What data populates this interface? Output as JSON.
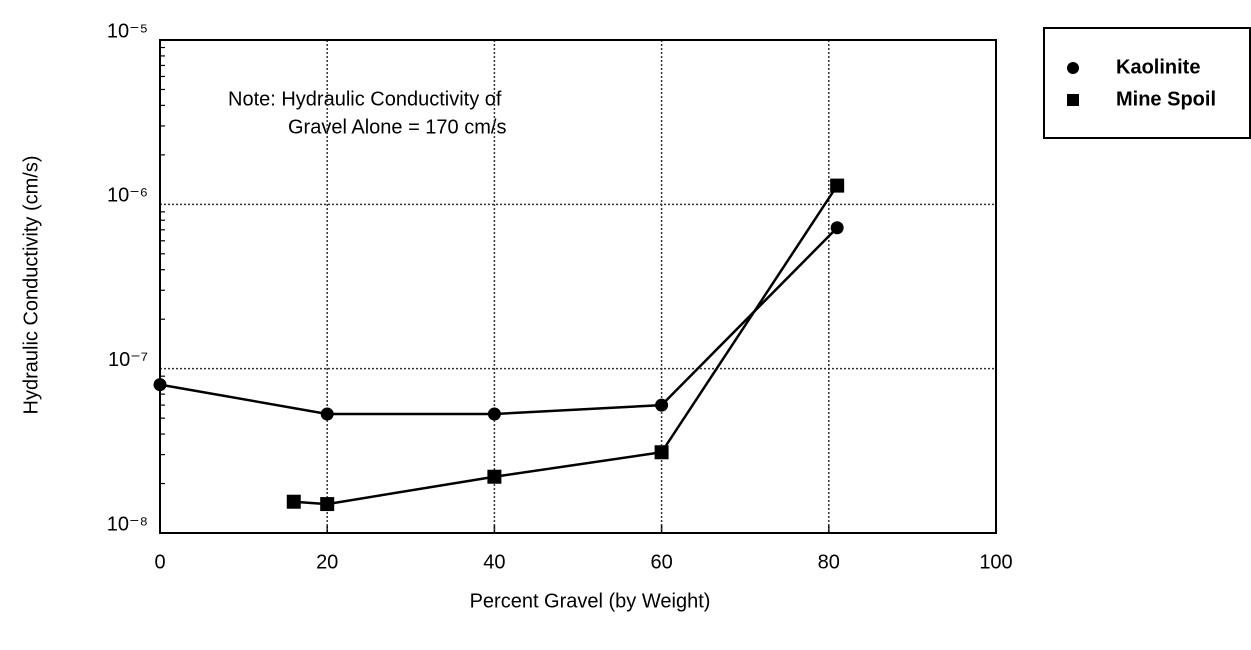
{
  "chart_data": {
    "type": "line",
    "xlabel": "Percent Gravel (by Weight)",
    "ylabel": "Hydraulic Conductivity (cm/s)",
    "annotations": [
      "Note: Hydraulic Conductivity of",
      "Gravel Alone = 170 cm/s"
    ],
    "series": [
      {
        "name": "Kaolinite",
        "color": "#000000",
        "marker": "circle",
        "x": [
          0,
          20,
          40,
          60,
          81
        ],
        "values": [
          8e-08,
          5.3e-08,
          5.3e-08,
          6e-08,
          7.2e-07
        ]
      },
      {
        "name": "Mine Spoil",
        "color": "#000000",
        "marker": "square",
        "x": [
          16,
          20,
          40,
          60,
          81
        ],
        "values": [
          1.55e-08,
          1.5e-08,
          2.2e-08,
          3.1e-08,
          1.3e-06
        ]
      }
    ],
    "xlim": [
      0,
      100
    ],
    "xticks": [
      0,
      20,
      40,
      60,
      80,
      100
    ],
    "ylim": [
      1e-08,
      1e-05
    ],
    "yticks": [
      {
        "value": 1e-08,
        "label": "10⁻⁸"
      },
      {
        "value": 1e-07,
        "label": "10⁻⁷"
      },
      {
        "value": 1e-06,
        "label": "10⁻⁶"
      },
      {
        "value": 1e-05,
        "label": "10⁻⁵"
      }
    ],
    "ylog": true,
    "grid": true,
    "legend": "outside upper right"
  }
}
